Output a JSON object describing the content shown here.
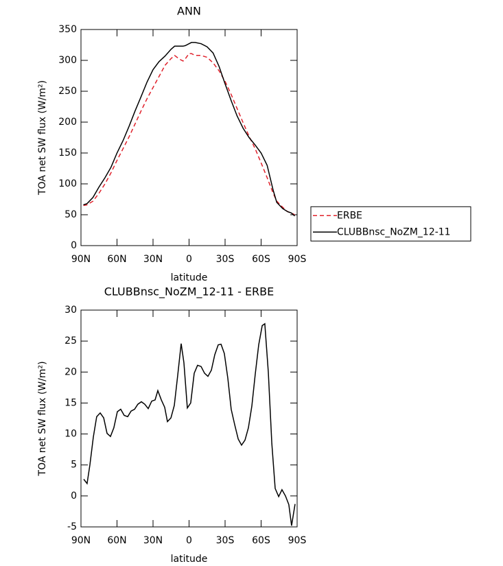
{
  "chart_data": [
    {
      "type": "line",
      "title": "ANN",
      "x_label": "latitude",
      "y_label": "TOA net SW flux (W/m²)",
      "xlim": [
        90,
        -90
      ],
      "xticks": [
        {
          "value": 90,
          "label": "90N"
        },
        {
          "value": 60,
          "label": "60N"
        },
        {
          "value": 30,
          "label": "30N"
        },
        0,
        {
          "value": -30,
          "label": "30S"
        },
        {
          "value": -60,
          "label": "60S"
        },
        {
          "value": -90,
          "label": "90S"
        }
      ],
      "ylim": [
        0,
        350
      ],
      "yticks": [
        0,
        50,
        100,
        150,
        200,
        250,
        300,
        350
      ],
      "legend": "right",
      "x": [
        88,
        85,
        80,
        75,
        70,
        65,
        60,
        55,
        50,
        45,
        40,
        35,
        30,
        25,
        20,
        15,
        12,
        8,
        5,
        3,
        0,
        -2,
        -5,
        -10,
        -15,
        -20,
        -25,
        -30,
        -35,
        -40,
        -45,
        -50,
        -55,
        -60,
        -65,
        -70,
        -73,
        -78,
        -82,
        -85,
        -88
      ],
      "series": [
        {
          "name": "ERBE",
          "color": "#e0202a",
          "dashed": true,
          "values": [
            65,
            66,
            72,
            85,
            100,
            118,
            138,
            157,
            176,
            197,
            218,
            238,
            256,
            274,
            292,
            303,
            308,
            302,
            299,
            303,
            311,
            311,
            308,
            308,
            305,
            296,
            283,
            266,
            245,
            222,
            199,
            177,
            157,
            134,
            110,
            85,
            72,
            62,
            55,
            53,
            50
          ]
        },
        {
          "name": "CLUBBnsc_NoZM_12-11",
          "color": "#000000",
          "dashed": false,
          "values": [
            66,
            68,
            78,
            95,
            110,
            127,
            150,
            170,
            193,
            218,
            241,
            265,
            285,
            298,
            307,
            318,
            323,
            323,
            323,
            324,
            327,
            329,
            329,
            327,
            322,
            312,
            290,
            262,
            235,
            210,
            190,
            175,
            163,
            150,
            130,
            90,
            70,
            60,
            55,
            53,
            48
          ]
        }
      ]
    },
    {
      "type": "line",
      "title": "CLUBBnsc_NoZM_12-11 - ERBE",
      "x_label": "latitude",
      "y_label": "TOA net SW flux (W/m²)",
      "xlim": [
        90,
        -90
      ],
      "xticks": [
        {
          "value": 90,
          "label": "90N"
        },
        {
          "value": 60,
          "label": "60N"
        },
        {
          "value": 30,
          "label": "30N"
        },
        0,
        {
          "value": -30,
          "label": "30S"
        },
        {
          "value": -60,
          "label": "60S"
        },
        {
          "value": -90,
          "label": "90S"
        }
      ],
      "ylim": [
        -5,
        30
      ],
      "yticks": [
        -5,
        0,
        5,
        10,
        15,
        20,
        25,
        30
      ],
      "x": [
        87.7,
        84.9,
        82.6,
        79.7,
        76.9,
        74,
        71.1,
        68.3,
        65.4,
        62.6,
        59.7,
        56.9,
        54,
        51.1,
        48.3,
        45.4,
        42.6,
        39.7,
        36.9,
        34,
        31.1,
        28.3,
        26,
        23.1,
        20.3,
        18,
        15.1,
        12.3,
        9.4,
        6.6,
        4.3,
        1.4,
        -1.4,
        -4.3,
        -7.1,
        -10,
        -12.9,
        -15.7,
        -18.6,
        -21.4,
        -24.3,
        -26.6,
        -29.4,
        -32.3,
        -35.1,
        -38,
        -40.9,
        -43.7,
        -46.6,
        -49.4,
        -52.3,
        -55.1,
        -58,
        -60.9,
        -63.1,
        -66,
        -68.9,
        -71.7,
        -74.6,
        -77.4,
        -80.3,
        -83.1,
        -85.4,
        -88.3
      ],
      "series": [
        {
          "color": "#000000",
          "dashed": false,
          "values": [
            2.7,
            2,
            5,
            9.5,
            12.8,
            13.4,
            12.6,
            10.1,
            9.6,
            11,
            13.6,
            14,
            13,
            12.8,
            13.7,
            14,
            14.8,
            15.2,
            14.8,
            14.1,
            15.3,
            15.5,
            17,
            15.5,
            14.3,
            12,
            12.6,
            14.6,
            19.5,
            24.6,
            21.5,
            14.2,
            15,
            19.8,
            21.1,
            20.9,
            19.8,
            19.3,
            20.3,
            22.8,
            24.4,
            24.5,
            23,
            19,
            14,
            11.5,
            9.2,
            8.2,
            9,
            11,
            14.5,
            19.6,
            24.4,
            27.5,
            27.8,
            20,
            8.5,
            1.2,
            -0.1,
            1,
            0,
            -1.4,
            -4.8,
            -1.3
          ]
        }
      ]
    }
  ]
}
